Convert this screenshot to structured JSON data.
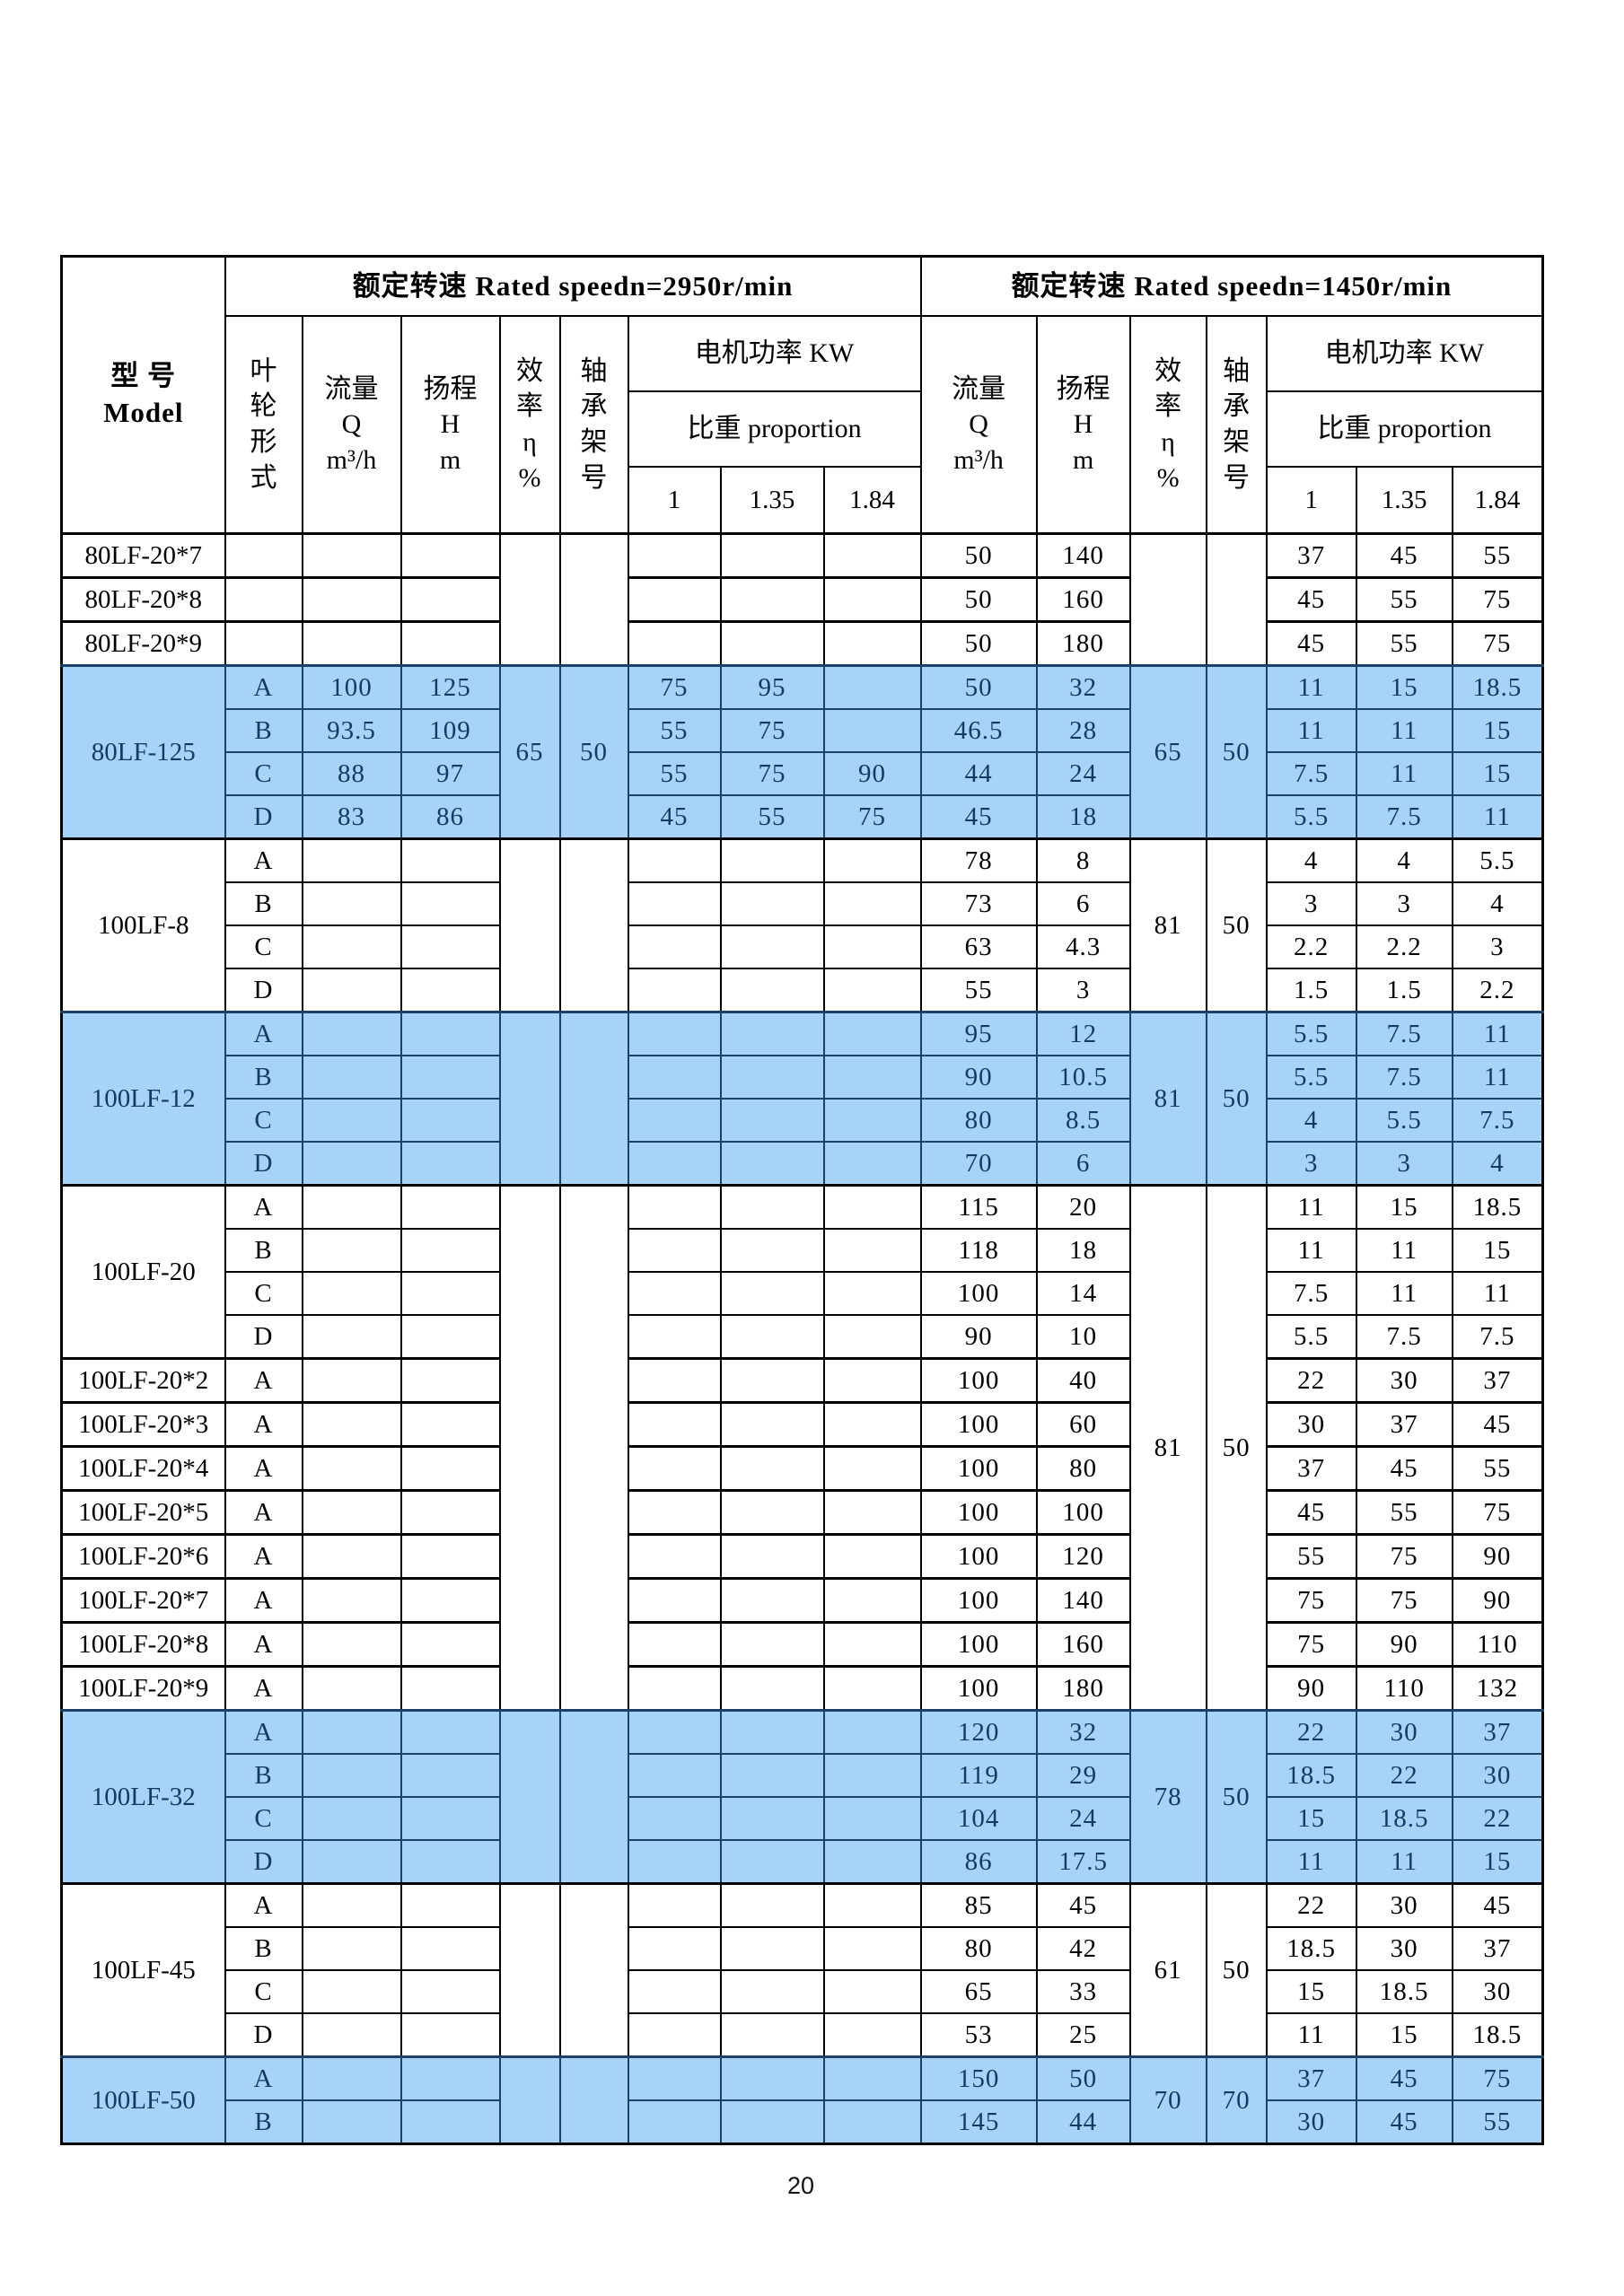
{
  "page_number": "20",
  "colors": {
    "highlight_bg": "#a6d3f7",
    "highlight_text": "#16395f"
  },
  "header": {
    "model": "型    号\nModel",
    "speed_left": "额定转速 Rated speedn=2950r/min",
    "speed_right": "额定转速 Rated speedn=1450r/min",
    "impeller": "叶\n轮\n形\n式",
    "flow": "流量\nQ\nm³/h",
    "head": "扬程\nH\nm",
    "efficiency": "效\n率\nη\n%",
    "bearing": "轴\n承\n架\n号",
    "motor_power": "电机功率 KW",
    "proportion": "比重 proportion",
    "ratios": [
      "1",
      "1.35",
      "1.84"
    ]
  },
  "groups": [
    {
      "highlight": false,
      "eff_2950": "",
      "bearing_2950": "",
      "eff_1450": "",
      "bearing_1450": "",
      "blocks": [
        {
          "model": "80LF-20*7",
          "rows": [
            {
              "form": "",
              "flow_2950": "",
              "head_2950": "",
              "power_2950": [
                "",
                "",
                ""
              ],
              "flow_1450": "50",
              "head_1450": "140",
              "power_1450": [
                "37",
                "45",
                "55"
              ]
            }
          ]
        },
        {
          "model": "80LF-20*8",
          "rows": [
            {
              "form": "",
              "flow_2950": "",
              "head_2950": "",
              "power_2950": [
                "",
                "",
                ""
              ],
              "flow_1450": "50",
              "head_1450": "160",
              "power_1450": [
                "45",
                "55",
                "75"
              ]
            }
          ]
        },
        {
          "model": "80LF-20*9",
          "rows": [
            {
              "form": "",
              "flow_2950": "",
              "head_2950": "",
              "power_2950": [
                "",
                "",
                ""
              ],
              "flow_1450": "50",
              "head_1450": "180",
              "power_1450": [
                "45",
                "55",
                "75"
              ]
            }
          ]
        }
      ]
    },
    {
      "highlight": true,
      "eff_2950": "65",
      "bearing_2950": "50",
      "eff_1450": "65",
      "bearing_1450": "50",
      "blocks": [
        {
          "model": "80LF-125",
          "rows": [
            {
              "form": "A",
              "flow_2950": "100",
              "head_2950": "125",
              "power_2950": [
                "75",
                "95",
                ""
              ],
              "flow_1450": "50",
              "head_1450": "32",
              "power_1450": [
                "11",
                "15",
                "18.5"
              ]
            },
            {
              "form": "B",
              "flow_2950": "93.5",
              "head_2950": "109",
              "power_2950": [
                "55",
                "75",
                ""
              ],
              "flow_1450": "46.5",
              "head_1450": "28",
              "power_1450": [
                "11",
                "11",
                "15"
              ]
            },
            {
              "form": "C",
              "flow_2950": "88",
              "head_2950": "97",
              "power_2950": [
                "55",
                "75",
                "90"
              ],
              "flow_1450": "44",
              "head_1450": "24",
              "power_1450": [
                "7.5",
                "11",
                "15"
              ]
            },
            {
              "form": "D",
              "flow_2950": "83",
              "head_2950": "86",
              "power_2950": [
                "45",
                "55",
                "75"
              ],
              "flow_1450": "45",
              "head_1450": "18",
              "power_1450": [
                "5.5",
                "7.5",
                "11"
              ]
            }
          ]
        }
      ]
    },
    {
      "highlight": false,
      "eff_2950": "",
      "bearing_2950": "",
      "eff_1450": "81",
      "bearing_1450": "50",
      "blocks": [
        {
          "model": "100LF-8",
          "rows": [
            {
              "form": "A",
              "flow_2950": "",
              "head_2950": "",
              "power_2950": [
                "",
                "",
                ""
              ],
              "flow_1450": "78",
              "head_1450": "8",
              "power_1450": [
                "4",
                "4",
                "5.5"
              ]
            },
            {
              "form": "B",
              "flow_2950": "",
              "head_2950": "",
              "power_2950": [
                "",
                "",
                ""
              ],
              "flow_1450": "73",
              "head_1450": "6",
              "power_1450": [
                "3",
                "3",
                "4"
              ]
            },
            {
              "form": "C",
              "flow_2950": "",
              "head_2950": "",
              "power_2950": [
                "",
                "",
                ""
              ],
              "flow_1450": "63",
              "head_1450": "4.3",
              "power_1450": [
                "2.2",
                "2.2",
                "3"
              ]
            },
            {
              "form": "D",
              "flow_2950": "",
              "head_2950": "",
              "power_2950": [
                "",
                "",
                ""
              ],
              "flow_1450": "55",
              "head_1450": "3",
              "power_1450": [
                "1.5",
                "1.5",
                "2.2"
              ]
            }
          ]
        }
      ]
    },
    {
      "highlight": true,
      "eff_2950": "",
      "bearing_2950": "",
      "eff_1450": "81",
      "bearing_1450": "50",
      "blocks": [
        {
          "model": "100LF-12",
          "rows": [
            {
              "form": "A",
              "flow_2950": "",
              "head_2950": "",
              "power_2950": [
                "",
                "",
                ""
              ],
              "flow_1450": "95",
              "head_1450": "12",
              "power_1450": [
                "5.5",
                "7.5",
                "11"
              ]
            },
            {
              "form": "B",
              "flow_2950": "",
              "head_2950": "",
              "power_2950": [
                "",
                "",
                ""
              ],
              "flow_1450": "90",
              "head_1450": "10.5",
              "power_1450": [
                "5.5",
                "7.5",
                "11"
              ]
            },
            {
              "form": "C",
              "flow_2950": "",
              "head_2950": "",
              "power_2950": [
                "",
                "",
                ""
              ],
              "flow_1450": "80",
              "head_1450": "8.5",
              "power_1450": [
                "4",
                "5.5",
                "7.5"
              ]
            },
            {
              "form": "D",
              "flow_2950": "",
              "head_2950": "",
              "power_2950": [
                "",
                "",
                ""
              ],
              "flow_1450": "70",
              "head_1450": "6",
              "power_1450": [
                "3",
                "3",
                "4"
              ]
            }
          ]
        }
      ]
    },
    {
      "highlight": false,
      "eff_2950": "",
      "bearing_2950": "",
      "eff_1450": "81",
      "bearing_1450": "50",
      "blocks": [
        {
          "model": "100LF-20",
          "rows": [
            {
              "form": "A",
              "flow_2950": "",
              "head_2950": "",
              "power_2950": [
                "",
                "",
                ""
              ],
              "flow_1450": "115",
              "head_1450": "20",
              "power_1450": [
                "11",
                "15",
                "18.5"
              ]
            },
            {
              "form": "B",
              "flow_2950": "",
              "head_2950": "",
              "power_2950": [
                "",
                "",
                ""
              ],
              "flow_1450": "118",
              "head_1450": "18",
              "power_1450": [
                "11",
                "11",
                "15"
              ]
            },
            {
              "form": "C",
              "flow_2950": "",
              "head_2950": "",
              "power_2950": [
                "",
                "",
                ""
              ],
              "flow_1450": "100",
              "head_1450": "14",
              "power_1450": [
                "7.5",
                "11",
                "11"
              ]
            },
            {
              "form": "D",
              "flow_2950": "",
              "head_2950": "",
              "power_2950": [
                "",
                "",
                ""
              ],
              "flow_1450": "90",
              "head_1450": "10",
              "power_1450": [
                "5.5",
                "7.5",
                "7.5"
              ]
            }
          ]
        },
        {
          "model": "100LF-20*2",
          "rows": [
            {
              "form": "A",
              "flow_2950": "",
              "head_2950": "",
              "power_2950": [
                "",
                "",
                ""
              ],
              "flow_1450": "100",
              "head_1450": "40",
              "power_1450": [
                "22",
                "30",
                "37"
              ]
            }
          ]
        },
        {
          "model": "100LF-20*3",
          "rows": [
            {
              "form": "A",
              "flow_2950": "",
              "head_2950": "",
              "power_2950": [
                "",
                "",
                ""
              ],
              "flow_1450": "100",
              "head_1450": "60",
              "power_1450": [
                "30",
                "37",
                "45"
              ]
            }
          ]
        },
        {
          "model": "100LF-20*4",
          "rows": [
            {
              "form": "A",
              "flow_2950": "",
              "head_2950": "",
              "power_2950": [
                "",
                "",
                ""
              ],
              "flow_1450": "100",
              "head_1450": "80",
              "power_1450": [
                "37",
                "45",
                "55"
              ]
            }
          ]
        },
        {
          "model": "100LF-20*5",
          "rows": [
            {
              "form": "A",
              "flow_2950": "",
              "head_2950": "",
              "power_2950": [
                "",
                "",
                ""
              ],
              "flow_1450": "100",
              "head_1450": "100",
              "power_1450": [
                "45",
                "55",
                "75"
              ]
            }
          ]
        },
        {
          "model": "100LF-20*6",
          "rows": [
            {
              "form": "A",
              "flow_2950": "",
              "head_2950": "",
              "power_2950": [
                "",
                "",
                ""
              ],
              "flow_1450": "100",
              "head_1450": "120",
              "power_1450": [
                "55",
                "75",
                "90"
              ]
            }
          ]
        },
        {
          "model": "100LF-20*7",
          "rows": [
            {
              "form": "A",
              "flow_2950": "",
              "head_2950": "",
              "power_2950": [
                "",
                "",
                ""
              ],
              "flow_1450": "100",
              "head_1450": "140",
              "power_1450": [
                "75",
                "75",
                "90"
              ]
            }
          ]
        },
        {
          "model": "100LF-20*8",
          "rows": [
            {
              "form": "A",
              "flow_2950": "",
              "head_2950": "",
              "power_2950": [
                "",
                "",
                ""
              ],
              "flow_1450": "100",
              "head_1450": "160",
              "power_1450": [
                "75",
                "90",
                "110"
              ]
            }
          ]
        },
        {
          "model": "100LF-20*9",
          "rows": [
            {
              "form": "A",
              "flow_2950": "",
              "head_2950": "",
              "power_2950": [
                "",
                "",
                ""
              ],
              "flow_1450": "100",
              "head_1450": "180",
              "power_1450": [
                "90",
                "110",
                "132"
              ]
            }
          ]
        }
      ]
    },
    {
      "highlight": true,
      "eff_2950": "",
      "bearing_2950": "",
      "eff_1450": "78",
      "bearing_1450": "50",
      "blocks": [
        {
          "model": "100LF-32",
          "rows": [
            {
              "form": "A",
              "flow_2950": "",
              "head_2950": "",
              "power_2950": [
                "",
                "",
                ""
              ],
              "flow_1450": "120",
              "head_1450": "32",
              "power_1450": [
                "22",
                "30",
                "37"
              ]
            },
            {
              "form": "B",
              "flow_2950": "",
              "head_2950": "",
              "power_2950": [
                "",
                "",
                ""
              ],
              "flow_1450": "119",
              "head_1450": "29",
              "power_1450": [
                "18.5",
                "22",
                "30"
              ]
            },
            {
              "form": "C",
              "flow_2950": "",
              "head_2950": "",
              "power_2950": [
                "",
                "",
                ""
              ],
              "flow_1450": "104",
              "head_1450": "24",
              "power_1450": [
                "15",
                "18.5",
                "22"
              ]
            },
            {
              "form": "D",
              "flow_2950": "",
              "head_2950": "",
              "power_2950": [
                "",
                "",
                ""
              ],
              "flow_1450": "86",
              "head_1450": "17.5",
              "power_1450": [
                "11",
                "11",
                "15"
              ]
            }
          ]
        }
      ]
    },
    {
      "highlight": false,
      "eff_2950": "",
      "bearing_2950": "",
      "eff_1450": "61",
      "bearing_1450": "50",
      "blocks": [
        {
          "model": "100LF-45",
          "rows": [
            {
              "form": "A",
              "flow_2950": "",
              "head_2950": "",
              "power_2950": [
                "",
                "",
                ""
              ],
              "flow_1450": "85",
              "head_1450": "45",
              "power_1450": [
                "22",
                "30",
                "45"
              ]
            },
            {
              "form": "B",
              "flow_2950": "",
              "head_2950": "",
              "power_2950": [
                "",
                "",
                ""
              ],
              "flow_1450": "80",
              "head_1450": "42",
              "power_1450": [
                "18.5",
                "30",
                "37"
              ]
            },
            {
              "form": "C",
              "flow_2950": "",
              "head_2950": "",
              "power_2950": [
                "",
                "",
                ""
              ],
              "flow_1450": "65",
              "head_1450": "33",
              "power_1450": [
                "15",
                "18.5",
                "30"
              ]
            },
            {
              "form": "D",
              "flow_2950": "",
              "head_2950": "",
              "power_2950": [
                "",
                "",
                ""
              ],
              "flow_1450": "53",
              "head_1450": "25",
              "power_1450": [
                "11",
                "15",
                "18.5"
              ]
            }
          ]
        }
      ]
    },
    {
      "highlight": true,
      "eff_2950": "",
      "bearing_2950": "",
      "eff_1450": "70",
      "bearing_1450": "70",
      "blocks": [
        {
          "model": "100LF-50",
          "rows": [
            {
              "form": "A",
              "flow_2950": "",
              "head_2950": "",
              "power_2950": [
                "",
                "",
                ""
              ],
              "flow_1450": "150",
              "head_1450": "50",
              "power_1450": [
                "37",
                "45",
                "75"
              ]
            },
            {
              "form": "B",
              "flow_2950": "",
              "head_2950": "",
              "power_2950": [
                "",
                "",
                ""
              ],
              "flow_1450": "145",
              "head_1450": "44",
              "power_1450": [
                "30",
                "45",
                "55"
              ]
            }
          ]
        }
      ]
    }
  ]
}
